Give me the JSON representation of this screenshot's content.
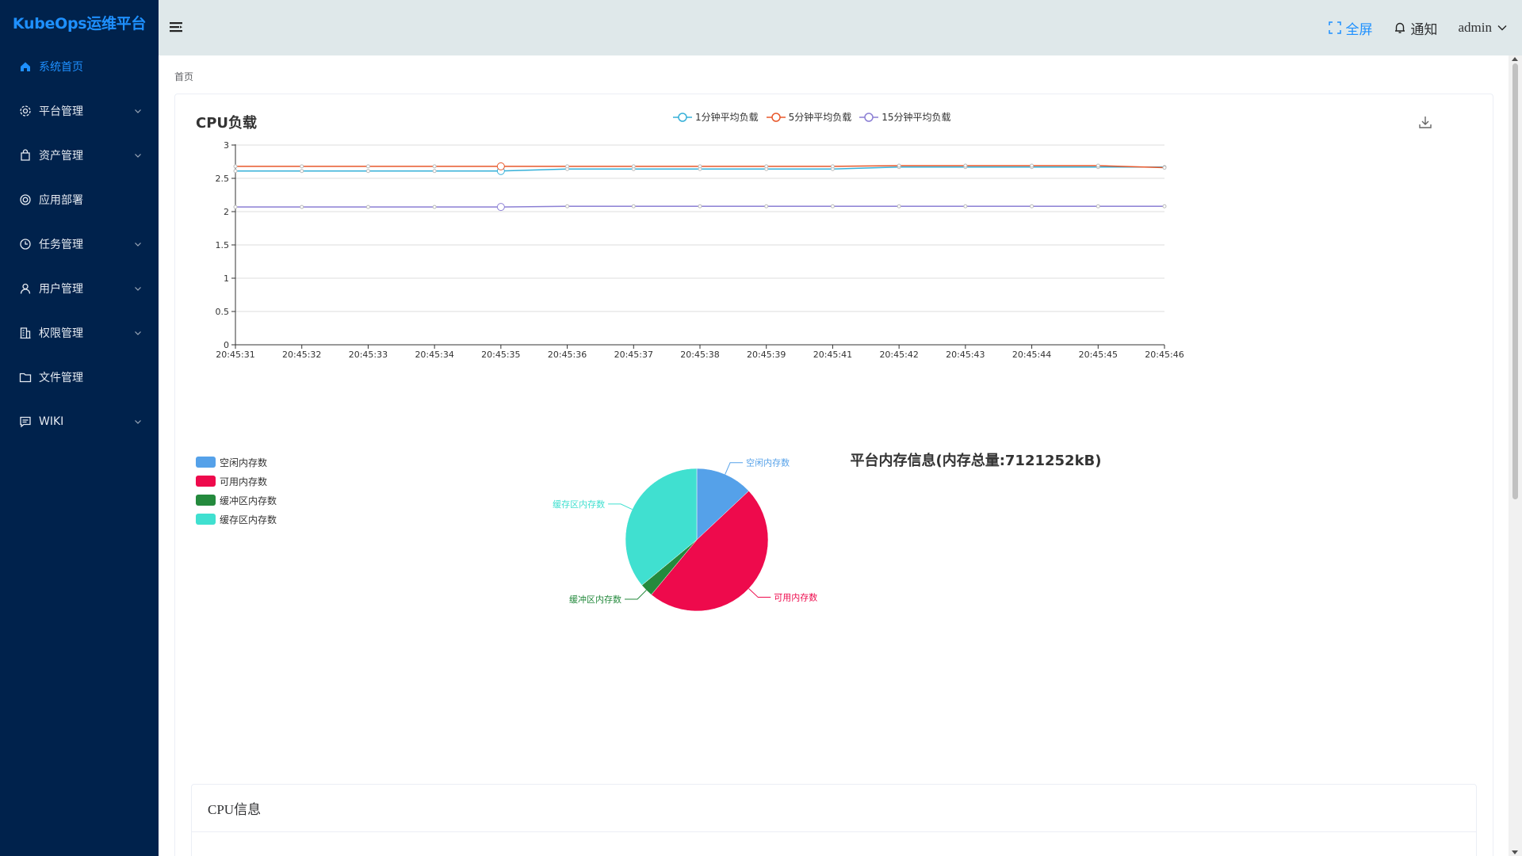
{
  "app": {
    "logo_text": "KubeOps运维平台"
  },
  "sidebar": {
    "items": [
      {
        "label": "系统首页",
        "icon": "home-icon",
        "active": true,
        "has_children": false
      },
      {
        "label": "平台管理",
        "icon": "gear-icon",
        "has_children": true
      },
      {
        "label": "资产管理",
        "icon": "bag-icon",
        "has_children": true
      },
      {
        "label": "应用部署",
        "icon": "lifebuoy-icon",
        "has_children": false
      },
      {
        "label": "任务管理",
        "icon": "clock-icon",
        "has_children": true
      },
      {
        "label": "用户管理",
        "icon": "user-icon",
        "has_children": true
      },
      {
        "label": "权限管理",
        "icon": "office-building-icon",
        "has_children": true
      },
      {
        "label": "文件管理",
        "icon": "folder-icon",
        "has_children": false
      },
      {
        "label": "WIKI",
        "icon": "chat-icon",
        "has_children": true
      }
    ]
  },
  "header": {
    "fullscreen_label": "全屏",
    "notify_label": "通知",
    "user_label": "admin"
  },
  "breadcrumb": {
    "current": "首页"
  },
  "cpu_chart": {
    "title": "CPU负载"
  },
  "memory_chart": {
    "title": "平台内存信息(内存总量:7121252kB)"
  },
  "cpu_info": {
    "title": "CPU信息"
  },
  "colors": {
    "sidebar_bg": "#00224c",
    "accent": "#1e90ff",
    "header_bg": "#dfe8ea",
    "series_1min": "#36b0d8",
    "series_5min": "#e8582b",
    "series_15min": "#8b7fd4",
    "mem_free": "#55a1e9",
    "mem_available": "#ee0a4c",
    "mem_buffer": "#248a3d",
    "mem_cache": "#40e0d0"
  },
  "chart_data": [
    {
      "type": "line",
      "title": "CPU负载",
      "x": [
        "20:45:31",
        "20:45:32",
        "20:45:33",
        "20:45:34",
        "20:45:35",
        "20:45:36",
        "20:45:37",
        "20:45:38",
        "20:45:39",
        "20:45:41",
        "20:45:42",
        "20:45:43",
        "20:45:44",
        "20:45:45",
        "20:45:46"
      ],
      "ylim": [
        0,
        3
      ],
      "yticks": [
        "0",
        "0.5",
        "1",
        "1.5",
        "2",
        "2.5",
        "3"
      ],
      "grid": true,
      "legend_position": "top",
      "series": [
        {
          "name": "1分钟平均负载",
          "color": "#36b0d8",
          "values": [
            2.61,
            2.61,
            2.61,
            2.61,
            2.61,
            2.64,
            2.64,
            2.64,
            2.64,
            2.64,
            2.67,
            2.67,
            2.67,
            2.67,
            2.67
          ]
        },
        {
          "name": "5分钟平均负载",
          "color": "#e8582b",
          "values": [
            2.68,
            2.68,
            2.68,
            2.68,
            2.68,
            2.68,
            2.68,
            2.68,
            2.68,
            2.68,
            2.69,
            2.69,
            2.69,
            2.69,
            2.66
          ]
        },
        {
          "name": "15分钟平均负载",
          "color": "#8b7fd4",
          "values": [
            2.07,
            2.07,
            2.07,
            2.07,
            2.07,
            2.08,
            2.08,
            2.08,
            2.08,
            2.08,
            2.08,
            2.08,
            2.08,
            2.08,
            2.08
          ]
        }
      ]
    },
    {
      "type": "pie",
      "title": "平台内存信息(内存总量:7121252kB)",
      "legend_position": "top-left",
      "series": [
        {
          "name": "空闲内存数",
          "color": "#55a1e9",
          "value": 13
        },
        {
          "name": "可用内存数",
          "color": "#ee0a4c",
          "value": 48
        },
        {
          "name": "缓冲区内存数",
          "color": "#248a3d",
          "value": 3
        },
        {
          "name": "缓存区内存数",
          "color": "#40e0d0",
          "value": 36
        }
      ]
    }
  ]
}
